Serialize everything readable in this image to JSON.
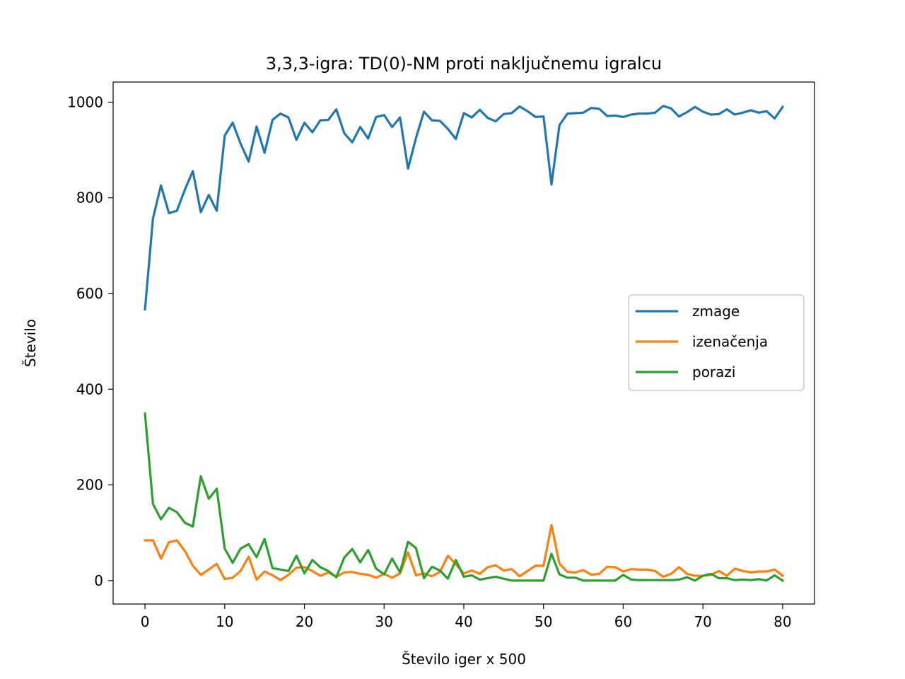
{
  "chart_data": {
    "type": "line",
    "title": "3,3,3-igra: TD(0)-NM proti naključnemu igralcu",
    "xlabel": "Število iger x 500",
    "ylabel": "Število",
    "xlim": [
      -4,
      84
    ],
    "ylim": [
      -49,
      1042
    ],
    "xticks": [
      0,
      10,
      20,
      30,
      40,
      50,
      60,
      70,
      80
    ],
    "yticks": [
      0,
      200,
      400,
      600,
      800,
      1000
    ],
    "legend_position": "center-right",
    "grid": false,
    "x": [
      0,
      1,
      2,
      3,
      4,
      5,
      6,
      7,
      8,
      9,
      10,
      11,
      12,
      13,
      14,
      15,
      16,
      17,
      18,
      19,
      20,
      21,
      22,
      23,
      24,
      25,
      26,
      27,
      28,
      29,
      30,
      31,
      32,
      33,
      34,
      35,
      36,
      37,
      38,
      39,
      40,
      41,
      42,
      43,
      44,
      45,
      46,
      47,
      48,
      49,
      50,
      51,
      52,
      53,
      54,
      55,
      56,
      57,
      58,
      59,
      60,
      61,
      62,
      63,
      64,
      65,
      66,
      67,
      68,
      69,
      70,
      71,
      72,
      73,
      74,
      75,
      76,
      77,
      78,
      79,
      80
    ],
    "series": [
      {
        "name": "zmage",
        "color": "#1f77b4",
        "values": [
          567,
          757,
          826,
          768,
          773,
          817,
          856,
          770,
          806,
          773,
          930,
          957,
          913,
          876,
          949,
          894,
          963,
          976,
          968,
          921,
          957,
          937,
          962,
          963,
          985,
          935,
          916,
          948,
          924,
          969,
          973,
          948,
          968,
          861,
          925,
          980,
          962,
          961,
          944,
          923,
          977,
          968,
          984,
          967,
          960,
          975,
          977,
          991,
          981,
          969,
          970,
          828,
          952,
          976,
          977,
          978,
          988,
          986,
          971,
          972,
          969,
          974,
          976,
          976,
          978,
          992,
          987,
          970,
          979,
          990,
          980,
          974,
          975,
          985,
          974,
          978,
          983,
          978,
          981,
          966,
          990
        ]
      },
      {
        "name": "izenačenja",
        "color": "#ff7f0e",
        "values": [
          84,
          84,
          46,
          80,
          84,
          62,
          31,
          12,
          23,
          35,
          3,
          6,
          20,
          50,
          2,
          19,
          11,
          1,
          12,
          27,
          28,
          20,
          10,
          17,
          8,
          17,
          18,
          14,
          12,
          6,
          14,
          6,
          15,
          59,
          11,
          15,
          9,
          18,
          52,
          34,
          15,
          21,
          14,
          28,
          32,
          21,
          24,
          9,
          20,
          31,
          31,
          116,
          35,
          18,
          17,
          22,
          12,
          14,
          29,
          28,
          19,
          24,
          23,
          23,
          20,
          8,
          14,
          28,
          14,
          10,
          10,
          12,
          20,
          10,
          25,
          20,
          17,
          19,
          19,
          23,
          10
        ]
      },
      {
        "name": "porazi",
        "color": "#2ca02c",
        "values": [
          349,
          160,
          128,
          152,
          143,
          121,
          113,
          218,
          171,
          192,
          67,
          37,
          67,
          76,
          49,
          87,
          26,
          23,
          20,
          52,
          15,
          43,
          28,
          20,
          7,
          48,
          66,
          38,
          64,
          25,
          13,
          46,
          17,
          81,
          68,
          5,
          29,
          21,
          4,
          43,
          8,
          11,
          2,
          5,
          8,
          4,
          0,
          0,
          0,
          0,
          0,
          56,
          13,
          6,
          6,
          0,
          0,
          0,
          0,
          0,
          12,
          2,
          1,
          1,
          1,
          1,
          1,
          2,
          7,
          0,
          10,
          14,
          5,
          5,
          1,
          2,
          1,
          3,
          0,
          11,
          0
        ]
      }
    ]
  }
}
